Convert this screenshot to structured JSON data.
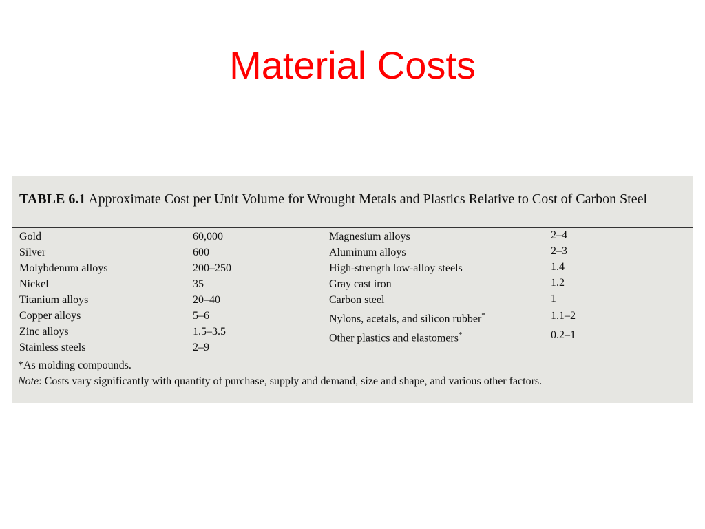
{
  "title": "Material Costs",
  "table": {
    "caption_label": "TABLE 6.1",
    "caption_text": "Approximate Cost per Unit Volume for Wrought Metals and Plastics Relative to Cost of Carbon Steel",
    "left_rows": [
      [
        "Gold",
        "60,000"
      ],
      [
        "Silver",
        "600"
      ],
      [
        "Molybdenum alloys",
        "200–250"
      ],
      [
        "Nickel",
        "35"
      ],
      [
        "Titanium alloys",
        "20–40"
      ],
      [
        "Copper alloys",
        "5–6"
      ],
      [
        "Zinc alloys",
        "1.5–3.5"
      ],
      [
        "Stainless steels",
        "2–9"
      ]
    ],
    "right_rows": [
      [
        "Magnesium alloys",
        "2–4"
      ],
      [
        "Aluminum alloys",
        "2–3"
      ],
      [
        "High-strength low-alloy steels",
        "1.4"
      ],
      [
        "Gray cast iron",
        "1.2"
      ],
      [
        "Carbon steel",
        "1"
      ],
      [
        "Nylons, acetals, and silicon rubber",
        "1.1–2"
      ],
      [
        "Other plastics and elastomers",
        "0.2–1"
      ]
    ],
    "right_row_markers": [
      null,
      null,
      null,
      null,
      null,
      "*",
      "*"
    ],
    "footnote": "*As molding compounds.",
    "note_label": "Note",
    "note_text": ": Costs vary significantly with quantity of purchase, supply and demand, size and shape, and various other factors."
  }
}
